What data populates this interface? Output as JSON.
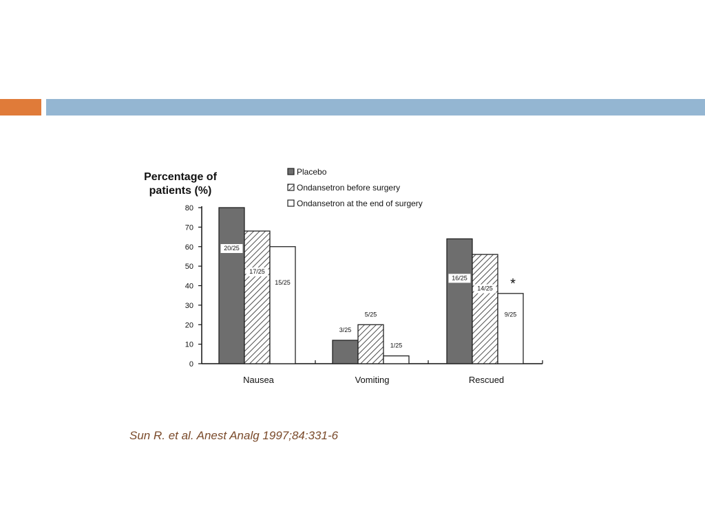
{
  "slide": {
    "accent_colors": {
      "left": "#e07b39",
      "right": "#94b6d2"
    },
    "citation": "Sun R. et al. Anest Analg 1997;84:331-6"
  },
  "chart_data": {
    "type": "bar",
    "ylabel": "Percentage of patients (%)",
    "ylabel_lines": [
      "Percentage of",
      "patients (%)"
    ],
    "xlabel": "",
    "ylim": [
      0,
      80
    ],
    "yticks": [
      0,
      10,
      20,
      30,
      40,
      50,
      60,
      70,
      80
    ],
    "grid": false,
    "legend_position": "top",
    "categories": [
      "Nausea",
      "Vomiting",
      "Rescued"
    ],
    "series": [
      {
        "name": "Placebo",
        "pattern": "solid-dark",
        "color": "#6e6e6e",
        "values": [
          80,
          12,
          64
        ],
        "labels": [
          "20/25",
          "3/25",
          "16/25"
        ]
      },
      {
        "name": "Ondansetron before surgery",
        "pattern": "hatched",
        "color": "#ffffff",
        "values": [
          68,
          20,
          56
        ],
        "labels": [
          "17/25",
          "5/25",
          "14/25"
        ]
      },
      {
        "name": "Ondansetron at the end of surgery",
        "pattern": "open",
        "color": "#ffffff",
        "values": [
          60,
          4,
          36
        ],
        "labels": [
          "15/25",
          "1/25",
          "9/25"
        ]
      }
    ],
    "annotations": [
      {
        "text": "*",
        "category": "Rescued",
        "series": "Ondansetron at the end of surgery"
      }
    ]
  }
}
